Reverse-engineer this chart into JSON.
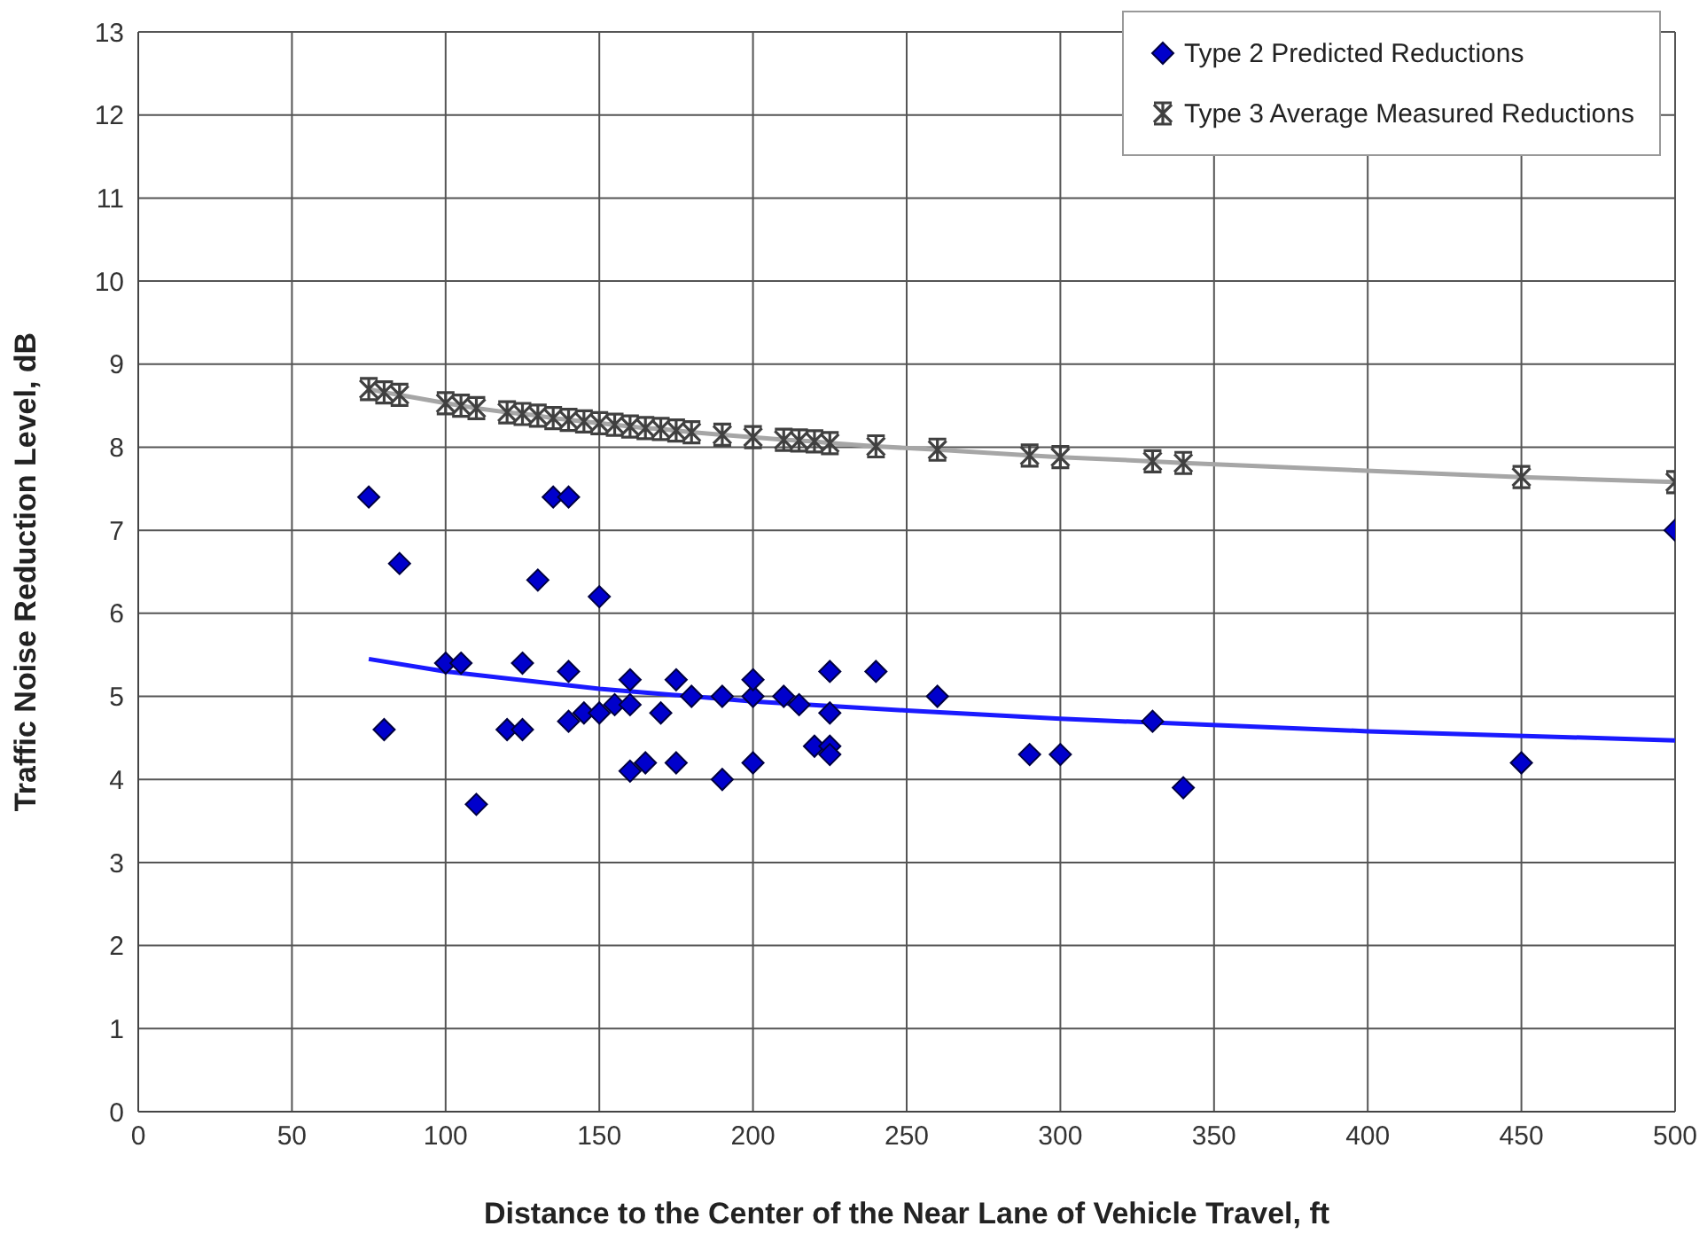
{
  "chart_data": {
    "type": "scatter",
    "xlabel": "Distance to the Center of the Near Lane of Vehicle Travel, ft",
    "ylabel": "Traffic Noise Reduction Level, dB",
    "xlim": [
      0,
      500
    ],
    "xticks": [
      0,
      50,
      100,
      150,
      200,
      250,
      300,
      350,
      400,
      450,
      500
    ],
    "ylim": [
      0,
      13
    ],
    "yticks": [
      0,
      1,
      2,
      3,
      4,
      5,
      6,
      7,
      8,
      9,
      10,
      11,
      12,
      13
    ],
    "grid": true,
    "legend": "top right",
    "series": [
      {
        "name": "Type 2  Predicted Reductions",
        "marker": "diamond",
        "color": "#0000cc",
        "x": [
          75,
          80,
          85,
          100,
          105,
          110,
          120,
          125,
          125,
          130,
          135,
          140,
          140,
          140,
          145,
          150,
          150,
          155,
          160,
          160,
          160,
          165,
          170,
          175,
          175,
          180,
          190,
          190,
          200,
          200,
          200,
          210,
          215,
          220,
          225,
          225,
          225,
          225,
          240,
          260,
          290,
          300,
          330,
          340,
          450,
          500
        ],
        "values": [
          7.4,
          4.6,
          6.6,
          5.4,
          5.4,
          3.7,
          4.6,
          4.6,
          5.4,
          6.4,
          7.4,
          7.4,
          5.3,
          4.7,
          4.8,
          4.8,
          6.2,
          4.9,
          4.9,
          5.2,
          4.1,
          4.2,
          4.8,
          5.2,
          4.2,
          5.0,
          5.0,
          4.0,
          5.0,
          5.2,
          4.2,
          5.0,
          4.9,
          4.4,
          4.4,
          4.3,
          4.8,
          5.3,
          5.3,
          5.0,
          4.3,
          4.3,
          4.7,
          3.9,
          4.2,
          7.0
        ]
      },
      {
        "type": "line",
        "marker": "none",
        "color": "#1a1aff",
        "x": [
          75,
          100,
          150,
          200,
          250,
          300,
          400,
          500
        ],
        "values": [
          5.45,
          5.3,
          5.09,
          4.94,
          4.83,
          4.73,
          4.58,
          4.47
        ]
      },
      {
        "name": "Type 3 Average Measured Reductions",
        "type": "line",
        "marker": "cross",
        "color": "#a6a6a6",
        "x": [
          75,
          80,
          85,
          100,
          105,
          110,
          120,
          125,
          130,
          135,
          140,
          145,
          150,
          155,
          160,
          165,
          170,
          175,
          180,
          190,
          200,
          210,
          215,
          220,
          225,
          240,
          260,
          290,
          300,
          330,
          340,
          450,
          500
        ],
        "values": [
          8.7,
          8.66,
          8.63,
          8.53,
          8.5,
          8.47,
          8.42,
          8.4,
          8.38,
          8.35,
          8.33,
          8.31,
          8.29,
          8.27,
          8.25,
          8.23,
          8.22,
          8.2,
          8.18,
          8.15,
          8.12,
          8.09,
          8.08,
          8.07,
          8.05,
          8.01,
          7.97,
          7.9,
          7.88,
          7.83,
          7.81,
          7.64,
          7.58
        ]
      }
    ]
  }
}
